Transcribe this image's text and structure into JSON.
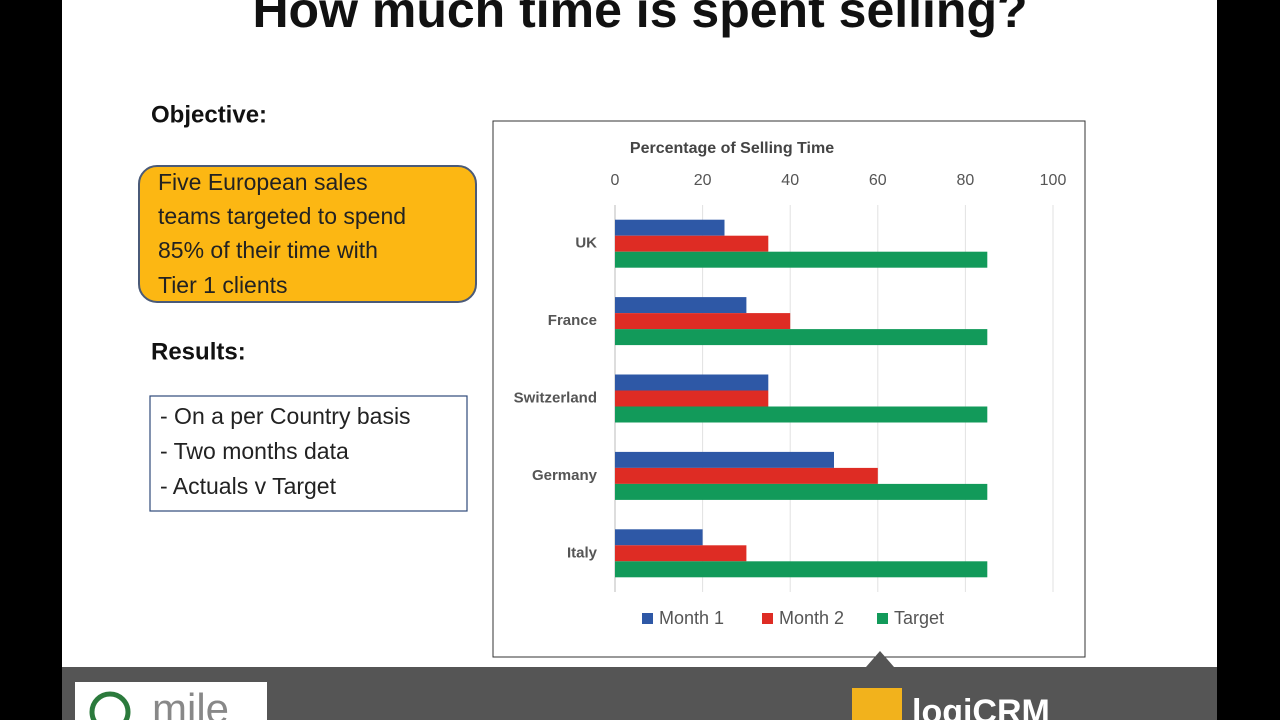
{
  "slide": {
    "title": "How much time is spent selling?",
    "objective_heading": "Objective:",
    "objective_lines": [
      "Five European sales",
      "teams targeted to spend",
      "85% of their time with",
      "Tier 1 clients"
    ],
    "results_heading": "Results:",
    "results_items": [
      "- On a per Country basis",
      "- Two months data",
      "- Actuals v Target"
    ]
  },
  "footer": {
    "left_logo": "mile",
    "right_logo": "logiCRM"
  },
  "chart_data": {
    "type": "hbar",
    "title": "Percentage of Selling Time",
    "categories": [
      "UK",
      "France",
      "Switzerland",
      "Germany",
      "Italy"
    ],
    "series": [
      {
        "name": "Month 1",
        "color": "#2e58a6",
        "values": [
          25,
          30,
          35,
          50,
          20
        ]
      },
      {
        "name": "Month 2",
        "color": "#de2c24",
        "values": [
          35,
          40,
          35,
          60,
          30
        ]
      },
      {
        "name": "Target",
        "color": "#129a5a",
        "values": [
          85,
          85,
          85,
          85,
          85
        ]
      }
    ],
    "xlim": [
      0,
      100
    ],
    "xticks": [
      0,
      20,
      40,
      60,
      80,
      100
    ],
    "grid": true,
    "legend": "bottom"
  }
}
